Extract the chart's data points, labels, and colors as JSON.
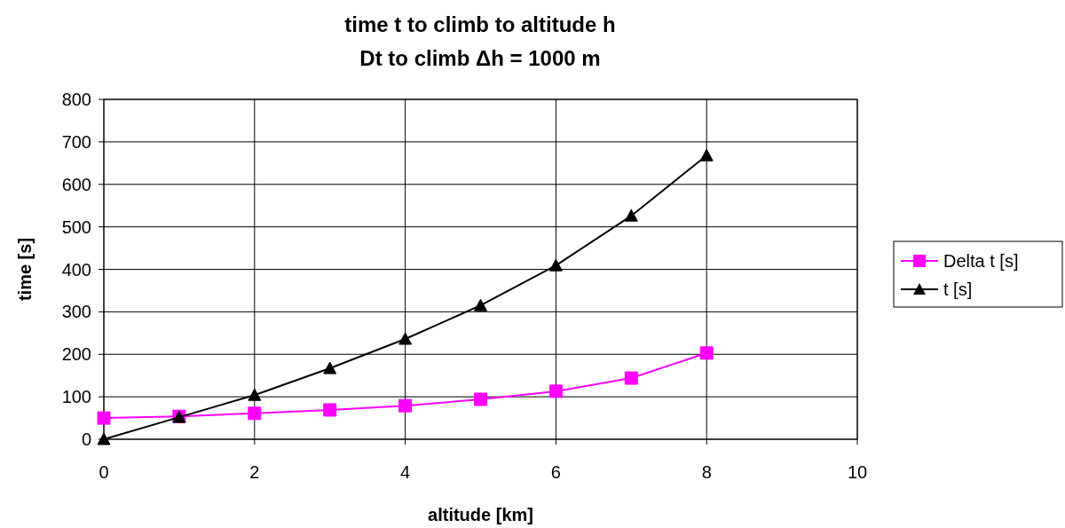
{
  "chart_data": {
    "type": "line",
    "title": "time t to climb to altitude h",
    "subtitle": "Dt to climb Δh = 1000 m",
    "xlabel": "altitude [km]",
    "ylabel": "time [s]",
    "x": [
      0,
      1,
      2,
      3,
      4,
      5,
      6,
      7,
      8
    ],
    "series": [
      {
        "name": "Delta t [s]",
        "color": "#ff00ff",
        "marker": "square",
        "values": [
          50,
          54,
          61,
          69,
          79,
          94,
          113,
          144,
          203
        ]
      },
      {
        "name": "t [s]",
        "color": "#000000",
        "marker": "triangle",
        "values": [
          0,
          52,
          104,
          167,
          236,
          315,
          409,
          526,
          668
        ]
      }
    ],
    "xlim": [
      0,
      10
    ],
    "xticks": [
      0,
      2,
      4,
      6,
      8,
      10
    ],
    "ylim": [
      0,
      800
    ],
    "yticks": [
      0,
      100,
      200,
      300,
      400,
      500,
      600,
      700,
      800
    ],
    "grid": true,
    "legend": "right"
  }
}
